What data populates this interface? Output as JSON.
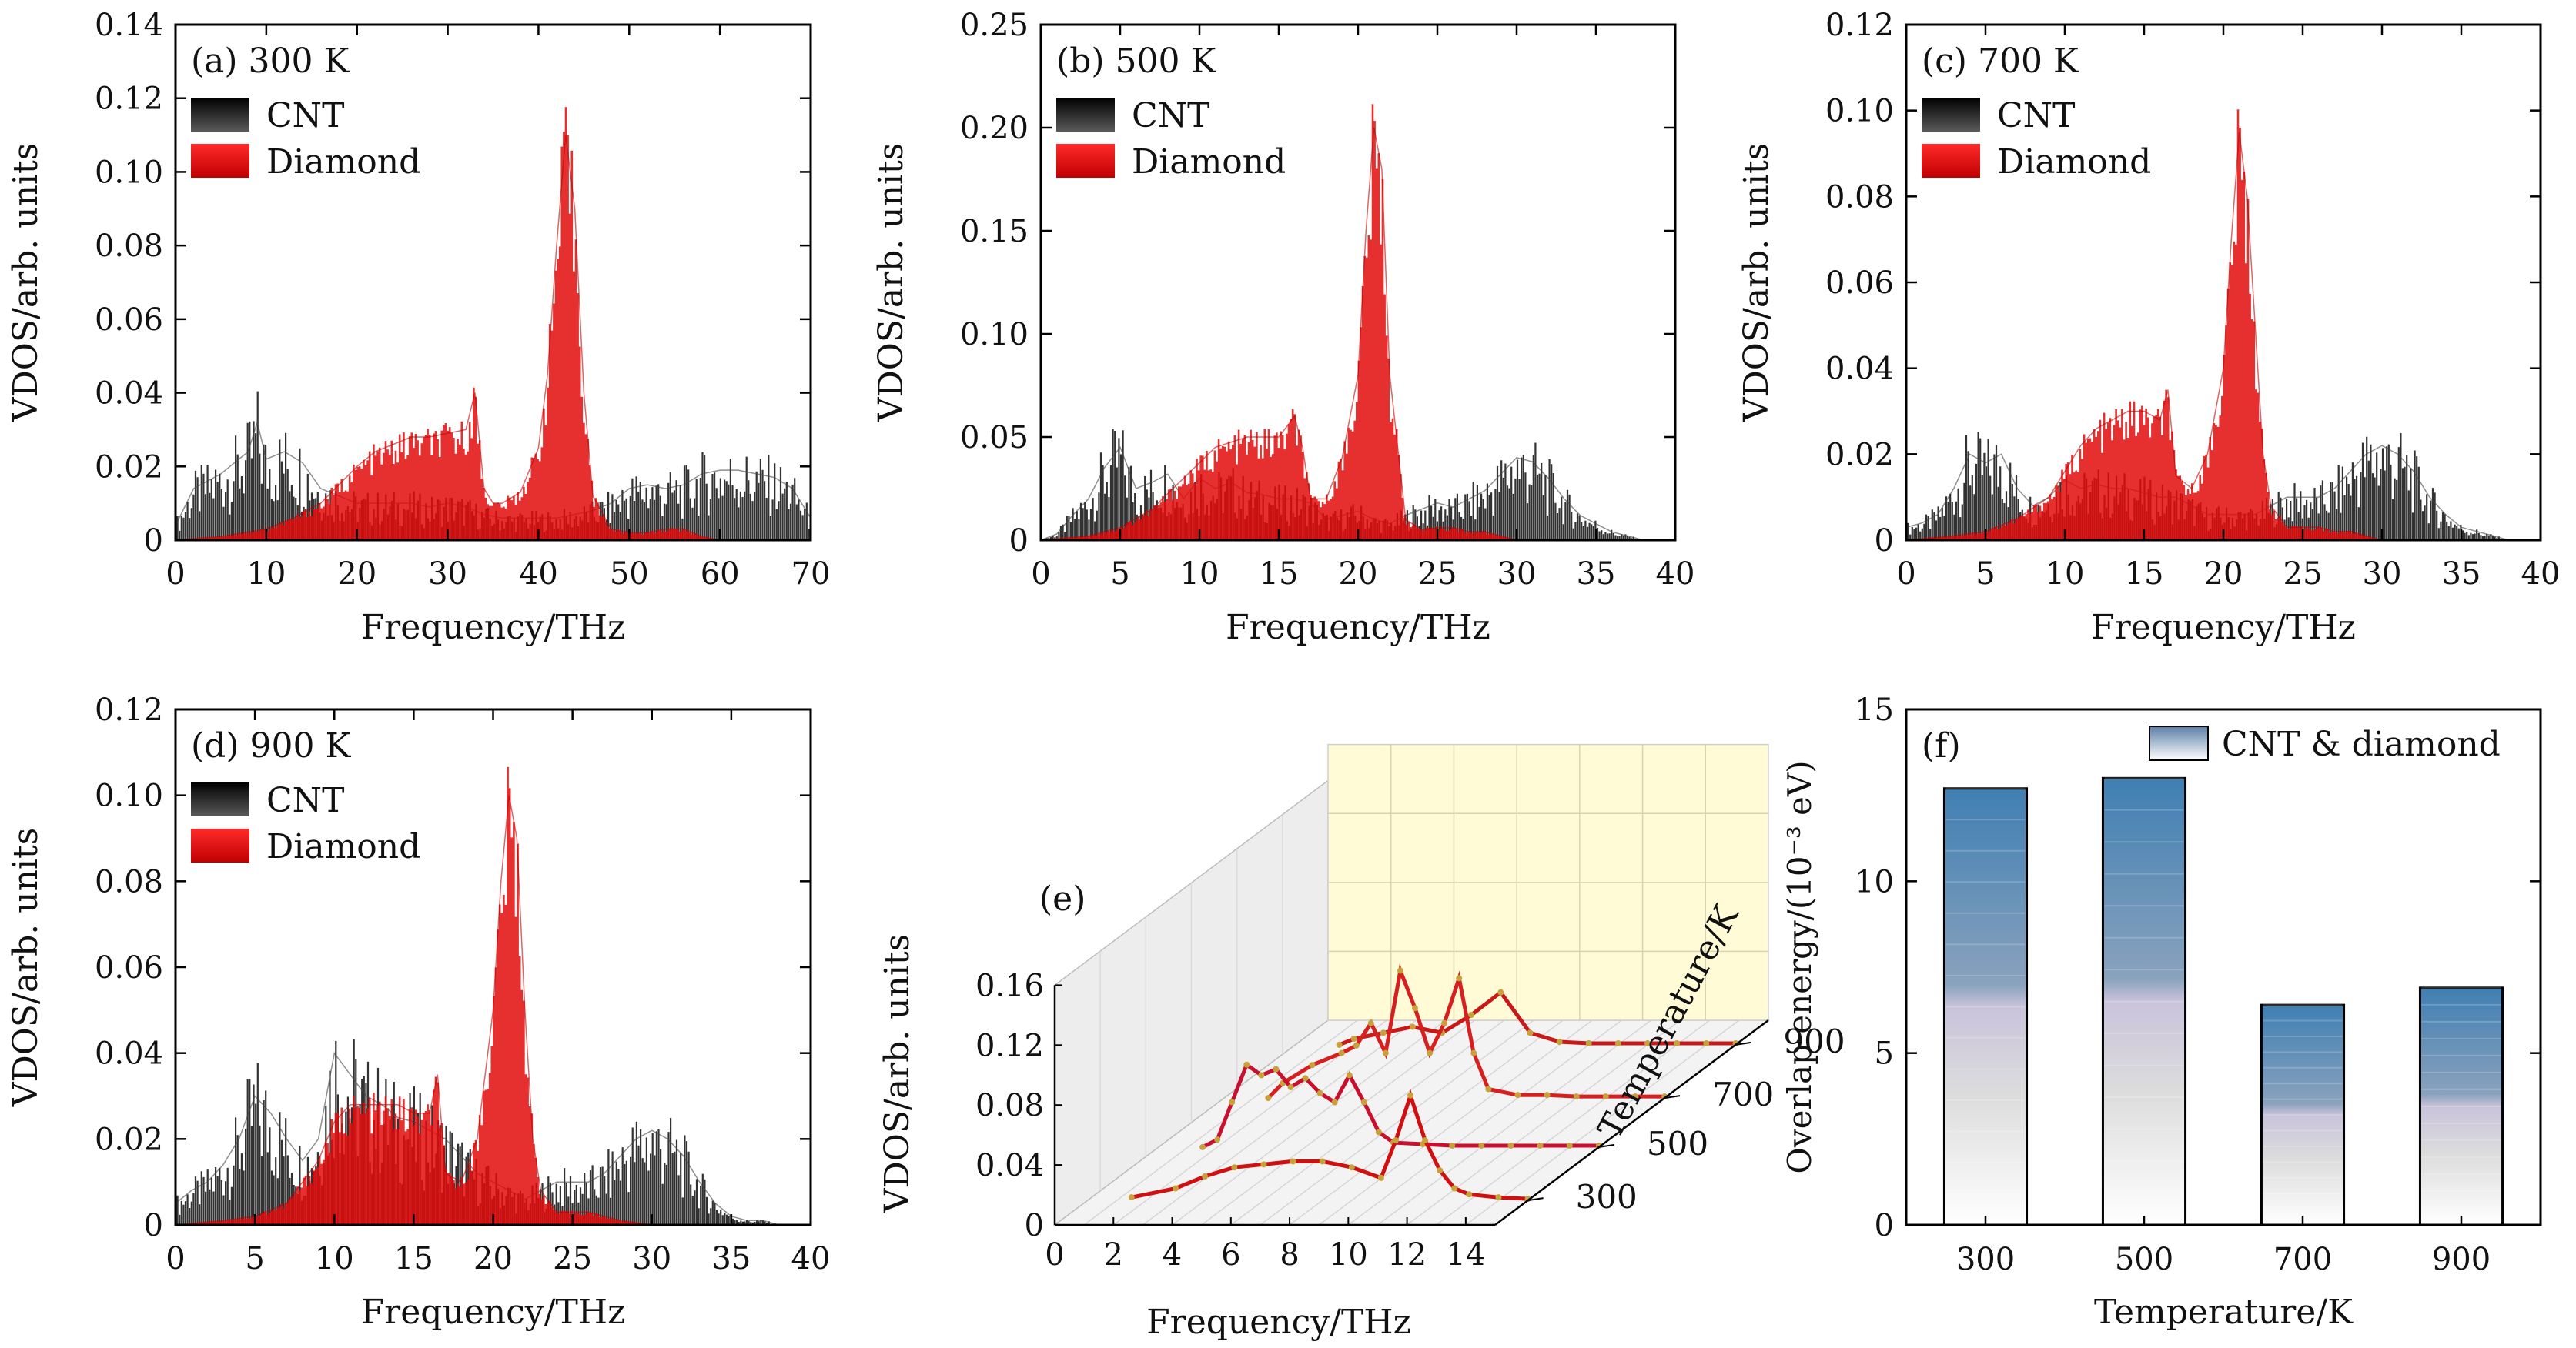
{
  "colors": {
    "cnt": "#1a1a1a",
    "diamond": "#e00000",
    "panel_e_wall": "#fffbd6",
    "panel_e_floor": "#f1f1f1",
    "bar_top": "#3f7fb3",
    "bar_mid": "#8aa2bd",
    "bar_low": "#e6e6e6",
    "axis": "#000000"
  },
  "chart_data": [
    {
      "id": "a",
      "type": "area",
      "panel_label": "(a) 300 K",
      "xlabel": "Frequency/THz",
      "ylabel": "VDOS/arb. units",
      "xlim": [
        0,
        70
      ],
      "ylim": [
        0,
        0.14
      ],
      "xticks": [
        "0",
        "10",
        "20",
        "30",
        "40",
        "50",
        "60",
        "70"
      ],
      "yticks": [
        "0",
        "0.02",
        "0.04",
        "0.06",
        "0.08",
        "0.10",
        "0.12",
        "0.14"
      ],
      "legend": [
        "CNT",
        "Diamond"
      ],
      "series": [
        {
          "name": "CNT",
          "x": [
            0,
            2,
            5,
            8,
            9,
            10,
            12,
            14,
            16,
            18,
            20,
            22,
            24,
            26,
            28,
            30,
            32,
            34,
            36,
            38,
            40,
            42,
            44,
            46,
            48,
            50,
            52,
            54,
            56,
            58,
            60,
            62,
            64,
            66,
            68,
            70
          ],
          "y": [
            0.004,
            0.014,
            0.018,
            0.024,
            0.032,
            0.022,
            0.024,
            0.021,
            0.014,
            0.012,
            0.01,
            0.01,
            0.01,
            0.01,
            0.009,
            0.01,
            0.009,
            0.007,
            0.006,
            0.006,
            0.006,
            0.006,
            0.007,
            0.008,
            0.01,
            0.014,
            0.015,
            0.014,
            0.015,
            0.018,
            0.019,
            0.019,
            0.018,
            0.017,
            0.014,
            0.006
          ]
        },
        {
          "name": "Diamond",
          "x": [
            0,
            5,
            10,
            13,
            16,
            18,
            20,
            22,
            24,
            26,
            28,
            30,
            32,
            33,
            34,
            35,
            36,
            38,
            40,
            41,
            42,
            43,
            44,
            45,
            46,
            48,
            50,
            52,
            54,
            56,
            58,
            60
          ],
          "y": [
            0,
            0.001,
            0.003,
            0.006,
            0.01,
            0.015,
            0.02,
            0.024,
            0.026,
            0.028,
            0.028,
            0.029,
            0.03,
            0.04,
            0.014,
            0.01,
            0.01,
            0.013,
            0.025,
            0.045,
            0.08,
            0.11,
            0.09,
            0.04,
            0.012,
            0.003,
            0.002,
            0.002,
            0.003,
            0.003,
            0.001,
            0
          ]
        }
      ]
    },
    {
      "id": "b",
      "type": "area",
      "panel_label": "(b) 500 K",
      "xlabel": "Frequency/THz",
      "ylabel": "VDOS/arb. units",
      "xlim": [
        0,
        40
      ],
      "ylim": [
        0,
        0.25
      ],
      "xticks": [
        "0",
        "5",
        "10",
        "15",
        "20",
        "25",
        "30",
        "35",
        "40"
      ],
      "yticks": [
        "0",
        "0.05",
        "0.10",
        "0.15",
        "0.20",
        "0.25"
      ],
      "legend": [
        "CNT",
        "Diamond"
      ],
      "series": [
        {
          "name": "CNT",
          "x": [
            0,
            1,
            2,
            3,
            4,
            5,
            6,
            7,
            8,
            9,
            10,
            11,
            12,
            13,
            14,
            15,
            16,
            17,
            18,
            19,
            20,
            21,
            22,
            23,
            24,
            25,
            26,
            27,
            28,
            29,
            30,
            31,
            32,
            33,
            34,
            35,
            36,
            37,
            38
          ],
          "y": [
            0,
            0.003,
            0.012,
            0.02,
            0.035,
            0.045,
            0.025,
            0.028,
            0.032,
            0.02,
            0.03,
            0.025,
            0.028,
            0.023,
            0.022,
            0.02,
            0.02,
            0.018,
            0.01,
            0.012,
            0.014,
            0.01,
            0.008,
            0.012,
            0.015,
            0.018,
            0.016,
            0.02,
            0.024,
            0.032,
            0.04,
            0.038,
            0.03,
            0.02,
            0.012,
            0.008,
            0.004,
            0.002,
            0
          ]
        },
        {
          "name": "Diamond",
          "x": [
            0,
            3,
            5,
            7,
            9,
            11,
            13,
            15,
            16,
            16.5,
            17,
            18,
            19,
            20,
            20.5,
            21,
            21.5,
            22,
            23,
            24,
            25,
            26,
            27,
            28,
            29,
            30
          ],
          "y": [
            0,
            0.002,
            0.006,
            0.015,
            0.03,
            0.045,
            0.05,
            0.05,
            0.06,
            0.045,
            0.02,
            0.02,
            0.04,
            0.08,
            0.15,
            0.2,
            0.18,
            0.08,
            0.01,
            0.005,
            0.006,
            0.006,
            0.004,
            0.004,
            0.002,
            0
          ]
        }
      ]
    },
    {
      "id": "c",
      "type": "area",
      "panel_label": "(c) 700 K",
      "xlabel": "Frequency/THz",
      "ylabel": "VDOS/arb. units",
      "xlim": [
        0,
        40
      ],
      "ylim": [
        0,
        0.12
      ],
      "xticks": [
        "0",
        "5",
        "10",
        "15",
        "20",
        "25",
        "30",
        "35",
        "40"
      ],
      "yticks": [
        "0",
        "0.02",
        "0.04",
        "0.06",
        "0.08",
        "0.10",
        "0.12"
      ],
      "legend": [
        "CNT",
        "Diamond"
      ],
      "series": [
        {
          "name": "CNT",
          "x": [
            0,
            1,
            2,
            3,
            4,
            5,
            6,
            7,
            8,
            9,
            10,
            11,
            12,
            13,
            14,
            15,
            16,
            17,
            18,
            19,
            20,
            21,
            22,
            23,
            24,
            25,
            26,
            27,
            28,
            29,
            30,
            31,
            32,
            33,
            34,
            35,
            36,
            37,
            38
          ],
          "y": [
            0.003,
            0.004,
            0.006,
            0.012,
            0.02,
            0.018,
            0.02,
            0.012,
            0.008,
            0.01,
            0.014,
            0.012,
            0.013,
            0.012,
            0.012,
            0.011,
            0.01,
            0.01,
            0.008,
            0.006,
            0.006,
            0.006,
            0.006,
            0.008,
            0.01,
            0.01,
            0.01,
            0.012,
            0.016,
            0.02,
            0.022,
            0.02,
            0.016,
            0.01,
            0.006,
            0.003,
            0.002,
            0.001,
            0
          ]
        },
        {
          "name": "Diamond",
          "x": [
            0,
            3,
            5,
            7,
            9,
            10,
            11,
            12,
            13,
            14,
            15,
            16,
            16.5,
            17,
            18,
            19,
            20,
            20.5,
            21,
            21.5,
            22,
            22.5,
            23,
            24,
            25,
            26,
            27,
            28,
            29,
            30
          ],
          "y": [
            0,
            0.001,
            0.002,
            0.005,
            0.01,
            0.016,
            0.022,
            0.026,
            0.028,
            0.03,
            0.03,
            0.028,
            0.035,
            0.015,
            0.012,
            0.02,
            0.04,
            0.07,
            0.095,
            0.08,
            0.05,
            0.02,
            0.008,
            0.003,
            0.003,
            0.003,
            0.002,
            0.002,
            0.001,
            0
          ]
        }
      ]
    },
    {
      "id": "d",
      "type": "area",
      "panel_label": "(d) 900 K",
      "xlabel": "Frequency/THz",
      "ylabel": "VDOS/arb. units",
      "xlim": [
        0,
        40
      ],
      "ylim": [
        0,
        0.12
      ],
      "xticks": [
        "0",
        "5",
        "10",
        "15",
        "20",
        "25",
        "30",
        "35",
        "40"
      ],
      "yticks": [
        "0",
        "0.02",
        "0.04",
        "0.06",
        "0.08",
        "0.10",
        "0.12"
      ],
      "legend": [
        "CNT",
        "Diamond"
      ],
      "series": [
        {
          "name": "CNT",
          "x": [
            0,
            1,
            2,
            3,
            4,
            5,
            6,
            7,
            8,
            9,
            10,
            11,
            12,
            13,
            14,
            15,
            16,
            17,
            18,
            19,
            20,
            21,
            22,
            23,
            24,
            25,
            26,
            27,
            28,
            29,
            30,
            31,
            32,
            33,
            34,
            35,
            36,
            37,
            38
          ],
          "y": [
            0.005,
            0.008,
            0.01,
            0.014,
            0.02,
            0.03,
            0.026,
            0.02,
            0.015,
            0.02,
            0.04,
            0.035,
            0.03,
            0.028,
            0.025,
            0.024,
            0.022,
            0.02,
            0.016,
            0.012,
            0.01,
            0.008,
            0.006,
            0.008,
            0.01,
            0.01,
            0.01,
            0.012,
            0.016,
            0.02,
            0.022,
            0.02,
            0.016,
            0.01,
            0.005,
            0.002,
            0.001,
            0.001,
            0
          ]
        },
        {
          "name": "Diamond",
          "x": [
            0,
            3,
            5,
            7,
            9,
            10,
            11,
            12,
            13,
            14,
            15,
            16,
            16.5,
            17,
            18,
            19,
            20,
            20.5,
            21,
            21.5,
            22,
            22.5,
            23,
            24,
            25,
            26,
            27,
            28,
            30
          ],
          "y": [
            0,
            0.001,
            0.002,
            0.005,
            0.015,
            0.024,
            0.028,
            0.028,
            0.028,
            0.028,
            0.026,
            0.026,
            0.035,
            0.012,
            0.01,
            0.02,
            0.05,
            0.08,
            0.1,
            0.09,
            0.05,
            0.02,
            0.008,
            0.003,
            0.003,
            0.003,
            0.002,
            0.001,
            0
          ]
        }
      ]
    },
    {
      "id": "e",
      "type": "line",
      "panel_label": "(e)",
      "xlabel": "Frequency/THz",
      "ylabel": "VDOS/arb. units",
      "zlabel": "Temperature/K",
      "xlim": [
        0,
        15
      ],
      "ylim": [
        0,
        0.16
      ],
      "xticks": [
        "0",
        "2",
        "4",
        "6",
        "8",
        "10",
        "12",
        "14"
      ],
      "yticks": [
        "0",
        "0.04",
        "0.08",
        "0.12",
        "0.16"
      ],
      "zticks": [
        "300",
        "500",
        "700",
        "900"
      ],
      "series": [
        {
          "name": "300",
          "x": [
            1.5,
            3,
            4,
            5,
            6,
            7,
            8,
            9,
            10,
            10.5,
            11,
            11.5,
            12,
            12.5,
            13,
            14,
            15
          ],
          "y": [
            0.002,
            0.008,
            0.016,
            0.022,
            0.024,
            0.026,
            0.026,
            0.022,
            0.015,
            0.04,
            0.07,
            0.04,
            0.02,
            0.008,
            0.004,
            0.002,
            0.001
          ]
        },
        {
          "name": "500",
          "x": [
            1.5,
            2,
            2.5,
            3,
            3.5,
            4,
            4.5,
            5,
            5.5,
            6,
            6.5,
            7,
            7.5,
            8,
            9,
            10,
            11,
            12,
            13,
            14,
            15
          ],
          "y": [
            0,
            0.005,
            0.03,
            0.055,
            0.048,
            0.052,
            0.04,
            0.046,
            0.036,
            0.03,
            0.048,
            0.03,
            0.01,
            0.003,
            0.002,
            0.001,
            0.001,
            0.001,
            0.001,
            0.001,
            0.001
          ]
        },
        {
          "name": "700",
          "x": [
            1.5,
            2,
            3,
            4,
            4.5,
            5,
            5.5,
            6,
            6.5,
            7,
            7.5,
            8,
            8.5,
            9,
            10,
            11,
            12,
            13,
            14,
            15
          ],
          "y": [
            0,
            0.01,
            0.022,
            0.03,
            0.035,
            0.05,
            0.03,
            0.085,
            0.06,
            0.03,
            0.05,
            0.08,
            0.03,
            0.006,
            0.002,
            0.002,
            0.001,
            0.001,
            0.001,
            0.001
          ]
        },
        {
          "name": "900",
          "x": [
            1.5,
            2,
            3,
            4,
            5,
            6,
            7,
            8,
            9,
            10,
            11,
            12,
            13,
            14,
            15
          ],
          "y": [
            0,
            0.004,
            0.008,
            0.012,
            0.008,
            0.02,
            0.035,
            0.008,
            0.002,
            0.001,
            0.001,
            0.001,
            0.001,
            0.001,
            0.001
          ]
        }
      ]
    },
    {
      "id": "f",
      "type": "bar",
      "panel_label": "(f)",
      "xlabel": "Temperature/K",
      "ylabel": "Overlap energy/(10⁻³ eV)",
      "ylim": [
        0,
        15
      ],
      "yticks": [
        "0",
        "5",
        "10",
        "15"
      ],
      "categories": [
        "300",
        "500",
        "700",
        "900"
      ],
      "legend": [
        "CNT & diamond"
      ],
      "series": [
        {
          "name": "CNT & diamond",
          "values": [
            12.7,
            13.0,
            6.4,
            6.9
          ]
        }
      ]
    }
  ]
}
